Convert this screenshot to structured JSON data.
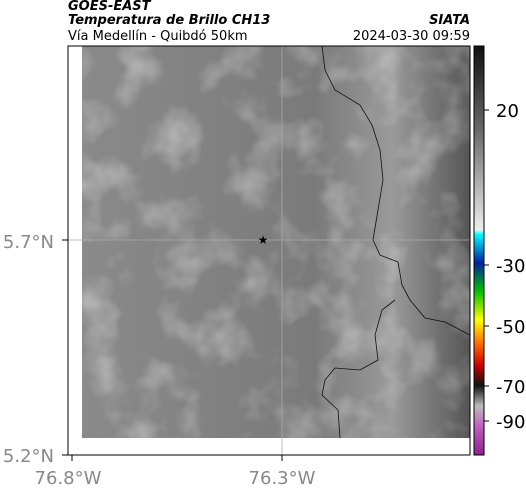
{
  "header": {
    "agency": "GOES-EAST",
    "title": "Temperatura de Brillo CH13",
    "subtitle": "Vía Medellín - Quibdó 50km",
    "source": "SIATA",
    "datetime": "2024-03-30 09:59"
  },
  "map": {
    "lat_ticks": [
      "5.7°N",
      "5.2°N"
    ],
    "lon_ticks": [
      "76.8°W",
      "76.3°W"
    ]
  },
  "colorbar": {
    "ticks": [
      20,
      -30,
      -50,
      -70,
      -90
    ]
  }
}
